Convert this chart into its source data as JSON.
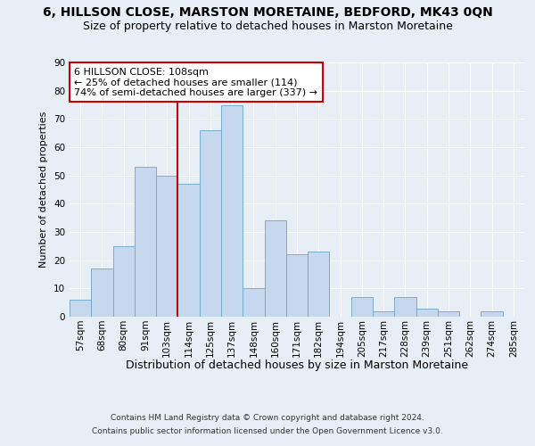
{
  "title1": "6, HILLSON CLOSE, MARSTON MORETAINE, BEDFORD, MK43 0QN",
  "title2": "Size of property relative to detached houses in Marston Moretaine",
  "xlabel": "Distribution of detached houses by size in Marston Moretaine",
  "ylabel": "Number of detached properties",
  "footer1": "Contains HM Land Registry data © Crown copyright and database right 2024.",
  "footer2": "Contains public sector information licensed under the Open Government Licence v3.0.",
  "categories": [
    "57sqm",
    "68sqm",
    "80sqm",
    "91sqm",
    "103sqm",
    "114sqm",
    "125sqm",
    "137sqm",
    "148sqm",
    "160sqm",
    "171sqm",
    "182sqm",
    "194sqm",
    "205sqm",
    "217sqm",
    "228sqm",
    "239sqm",
    "251sqm",
    "262sqm",
    "274sqm",
    "285sqm"
  ],
  "values": [
    6,
    17,
    25,
    53,
    50,
    47,
    66,
    75,
    10,
    34,
    22,
    23,
    0,
    7,
    2,
    7,
    3,
    2,
    0,
    2,
    0
  ],
  "bar_color": "#c5d8ed",
  "bar_edge_color": "#7aaecc",
  "vline_x_index": 4,
  "vline_color": "#cc0000",
  "annotation_text": "6 HILLSON CLOSE: 108sqm\n← 25% of detached houses are smaller (114)\n74% of semi-detached houses are larger (337) →",
  "annotation_box_color": "#ffffff",
  "annotation_box_edge": "#cc0000",
  "ylim": [
    0,
    90
  ],
  "yticks": [
    0,
    10,
    20,
    30,
    40,
    50,
    60,
    70,
    80,
    90
  ],
  "bg_color": "#e8eef5",
  "plot_bg_color": "#e8eef5",
  "grid_color": "#ffffff",
  "title1_fontsize": 10,
  "title2_fontsize": 9,
  "xlabel_fontsize": 9,
  "ylabel_fontsize": 8,
  "tick_fontsize": 7.5,
  "annotation_fontsize": 8,
  "footer_fontsize": 6.5
}
